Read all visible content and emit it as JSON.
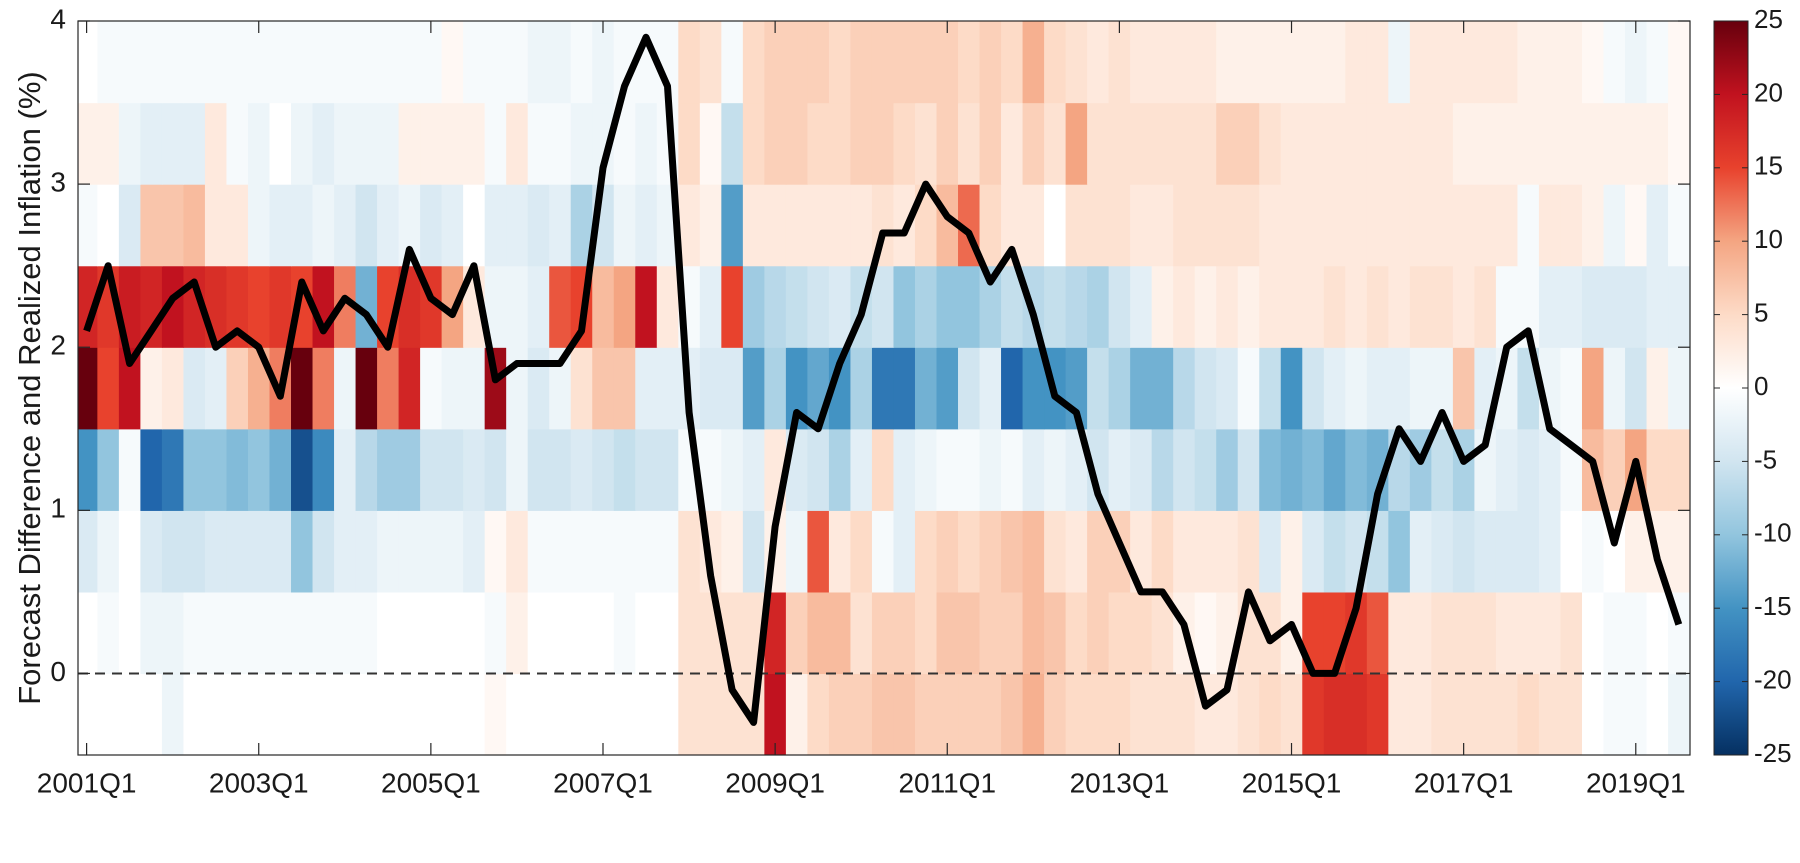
{
  "chart_data": {
    "type": "heatmap",
    "y_label": "Forecast Difference and Realized Inflation (%)",
    "x": [
      2001,
      2001.25,
      2001.5,
      2001.75,
      2002,
      2002.25,
      2002.5,
      2002.75,
      2003,
      2003.25,
      2003.5,
      2003.75,
      2004,
      2004.25,
      2004.5,
      2004.75,
      2005,
      2005.25,
      2005.5,
      2005.75,
      2006,
      2006.25,
      2006.5,
      2006.75,
      2007,
      2007.25,
      2007.5,
      2007.75,
      2008,
      2008.25,
      2008.5,
      2008.75,
      2009,
      2009.25,
      2009.5,
      2009.75,
      2010,
      2010.25,
      2010.5,
      2010.75,
      2011,
      2011.25,
      2011.5,
      2011.75,
      2012,
      2012.25,
      2012.5,
      2012.75,
      2013,
      2013.25,
      2013.5,
      2013.75,
      2014,
      2014.25,
      2014.5,
      2014.75,
      2015,
      2015.25,
      2015.5,
      2015.75,
      2016,
      2016.25,
      2016.5,
      2016.75,
      2017,
      2017.25,
      2017.5,
      2017.75,
      2018,
      2018.25,
      2018.5,
      2018.75,
      2019,
      2019.25,
      2019.5
    ],
    "y_edges": [
      -0.5,
      0,
      0.5,
      1,
      1.5,
      2,
      2.5,
      3,
      3.5,
      4
    ],
    "z": [
      [
        0,
        0,
        0,
        0,
        -2,
        0,
        0,
        0,
        0,
        0,
        0,
        0,
        0,
        0,
        0,
        0,
        0,
        0,
        0,
        1,
        0,
        0,
        0,
        0,
        0,
        0,
        0,
        0,
        4,
        4,
        4,
        4,
        20,
        2,
        5,
        6,
        6,
        7,
        7,
        6,
        6,
        6,
        6,
        7,
        9,
        6,
        5,
        5,
        5,
        4,
        4,
        4,
        3,
        3,
        4,
        5,
        4,
        16,
        17,
        17,
        16,
        3,
        3,
        4,
        4,
        4,
        4,
        5,
        4,
        4,
        0,
        -1,
        -1,
        0,
        -2
      ],
      [
        0,
        -1,
        0,
        -2,
        -2,
        -1,
        -1,
        -1,
        -1,
        -1,
        -1,
        -1,
        -1,
        -1,
        0,
        0,
        0,
        0,
        0,
        -1,
        2,
        0,
        0,
        0,
        0,
        -1,
        0,
        0,
        4,
        4,
        4,
        4,
        18,
        6,
        8,
        8,
        4,
        6,
        6,
        5,
        7,
        7,
        6,
        6,
        8,
        7,
        5,
        6,
        5,
        5,
        4,
        2,
        1,
        2,
        4,
        4,
        2,
        15,
        15,
        16,
        14,
        3,
        3,
        4,
        4,
        4,
        3,
        3,
        3,
        4,
        0,
        -1,
        -1,
        0,
        -1
      ],
      [
        -4,
        -2,
        0,
        -4,
        -5,
        -5,
        -4,
        -4,
        -4,
        -4,
        -10,
        -5,
        -3,
        -3,
        -2,
        -2,
        -2,
        -2,
        -3,
        1,
        3,
        -1,
        -1,
        -1,
        -1,
        -1,
        -1,
        -1,
        4,
        3,
        2,
        -5,
        2,
        -2,
        14,
        3,
        5,
        -1,
        -3,
        5,
        6,
        5,
        6,
        7,
        8,
        4,
        3,
        6,
        6,
        3,
        5,
        3,
        3,
        3,
        4,
        -4,
        2,
        -4,
        -6,
        -5,
        -6,
        -10,
        -3,
        -4,
        -5,
        -4,
        -4,
        -4,
        -3,
        0,
        -1,
        0,
        2,
        2,
        2
      ],
      [
        -15,
        -10,
        -1,
        -20,
        -18,
        -10,
        -10,
        -11,
        -10,
        -12,
        -22,
        -16,
        -3,
        -7,
        -9,
        -9,
        -5,
        -5,
        -4,
        -5,
        -2,
        -5,
        -5,
        -4,
        -5,
        -6,
        -5,
        -5,
        -1,
        -1,
        -2,
        -3,
        3,
        -4,
        -5,
        -8,
        -3,
        5,
        -3,
        -2,
        -1,
        -1,
        -2,
        -1,
        -3,
        -2,
        -3,
        -5,
        -3,
        -4,
        -7,
        -5,
        -6,
        -9,
        -5,
        -11,
        -12,
        -11,
        -13,
        -11,
        -12,
        -7,
        -9,
        -6,
        -8,
        -2,
        -3,
        -4,
        -3,
        -1,
        8,
        6,
        10,
        5,
        5
      ],
      [
        25,
        15,
        20,
        2,
        3,
        -4,
        -3,
        6,
        9,
        12,
        25,
        12,
        -2,
        25,
        12,
        18,
        -1,
        -2,
        -2,
        22,
        -2,
        -4,
        -2,
        4,
        7,
        7,
        -3,
        -3,
        -3,
        -4,
        -4,
        -14,
        -8,
        -15,
        -13,
        -15,
        -8,
        -18,
        -18,
        -12,
        -14,
        -5,
        -3,
        -20,
        -15,
        -15,
        -14,
        -6,
        -8,
        -12,
        -12,
        -7,
        -5,
        -4,
        -1,
        -6,
        -15,
        -5,
        -3,
        -2,
        -3,
        -3,
        -2,
        -2,
        7,
        -3,
        -2,
        -6,
        -2,
        -1,
        10,
        -2,
        -5,
        2,
        -2
      ],
      [
        18,
        16,
        19,
        18,
        20,
        18,
        17,
        16,
        15,
        16,
        15,
        20,
        12,
        -12,
        15,
        17,
        16,
        10,
        3,
        -2,
        -2,
        -3,
        14,
        15,
        8,
        10,
        20,
        3,
        -1,
        -3,
        15,
        -9,
        -7,
        -6,
        -5,
        -4,
        -6,
        -5,
        -10,
        -8,
        -10,
        -10,
        -8,
        -6,
        -7,
        -6,
        -7,
        -8,
        -5,
        -3,
        2,
        3,
        2,
        3,
        2,
        3,
        3,
        3,
        4,
        3,
        4,
        3,
        4,
        4,
        3,
        4,
        -1,
        -1,
        -3,
        -3,
        -4,
        -4,
        -4,
        -3,
        -3
      ],
      [
        -1,
        0,
        -4,
        7,
        7,
        8,
        3,
        3,
        -2,
        -3,
        -3,
        -2,
        -3,
        -5,
        -3,
        -2,
        -4,
        -3,
        0,
        -3,
        -3,
        -4,
        -3,
        -8,
        -5,
        -2,
        -3,
        -2,
        3,
        2,
        -14,
        3,
        3,
        3,
        3,
        3,
        3,
        4,
        3,
        5,
        8,
        13,
        5,
        3,
        3,
        0,
        4,
        4,
        4,
        3,
        3,
        4,
        4,
        4,
        4,
        3,
        3,
        3,
        3,
        3,
        3,
        3,
        3,
        3,
        3,
        3,
        3,
        -1,
        3,
        3,
        2,
        -2,
        1,
        -3,
        -1
      ],
      [
        2,
        2,
        -2,
        -3,
        -3,
        -3,
        3,
        -1,
        -2,
        0,
        -2,
        -3,
        -2,
        -2,
        -2,
        2,
        2,
        2,
        2,
        -1,
        3,
        -1,
        -1,
        -2,
        -2,
        -1,
        -2,
        -1,
        5,
        1,
        -6,
        5,
        6,
        6,
        5,
        5,
        6,
        6,
        5,
        4,
        6,
        4,
        6,
        3,
        6,
        4,
        10,
        4,
        4,
        4,
        4,
        4,
        4,
        6,
        6,
        4,
        3,
        3,
        3,
        3,
        3,
        3,
        3,
        3,
        2,
        2,
        2,
        2,
        2,
        2,
        2,
        2,
        2,
        2,
        1
      ],
      [
        0,
        -1,
        -1,
        -1,
        -1,
        -1,
        -1,
        -1,
        -1,
        -1,
        -1,
        -1,
        -1,
        -1,
        -1,
        -1,
        -1,
        1,
        -1,
        -1,
        -1,
        -2,
        -2,
        -1,
        -2,
        -1,
        -1,
        -1,
        5,
        4,
        -1,
        5,
        6,
        6,
        6,
        5,
        6,
        6,
        6,
        6,
        6,
        5,
        6,
        5,
        9,
        5,
        4,
        3,
        4,
        3,
        3,
        3,
        3,
        2,
        2,
        2,
        2,
        2,
        2,
        3,
        3,
        -2,
        3,
        3,
        3,
        3,
        3,
        2,
        2,
        2,
        1,
        -1,
        -2,
        -1,
        1
      ]
    ],
    "line": {
      "color": "#000000",
      "values": [
        2.1,
        2.5,
        1.9,
        2.1,
        2.3,
        2.4,
        2.0,
        2.1,
        2.0,
        1.7,
        2.4,
        2.1,
        2.3,
        2.2,
        2.0,
        2.6,
        2.3,
        2.2,
        2.5,
        1.8,
        1.9,
        1.9,
        1.9,
        2.1,
        3.1,
        3.6,
        3.9,
        3.6,
        1.6,
        0.6,
        -0.1,
        -0.3,
        0.9,
        1.6,
        1.5,
        1.9,
        2.2,
        2.7,
        2.7,
        3.0,
        2.8,
        2.7,
        2.4,
        2.6,
        2.2,
        1.7,
        1.6,
        1.1,
        0.8,
        0.5,
        0.5,
        0.3,
        -0.2,
        -0.1,
        0.5,
        0.2,
        0.3,
        0.0,
        0.0,
        0.4,
        1.1,
        1.5,
        1.3,
        1.6,
        1.3,
        1.4,
        2.0,
        2.1,
        1.5,
        1.4,
        1.3,
        0.8,
        1.3,
        0.7,
        0.3
      ]
    },
    "reference_line": 0,
    "xlim": [
      2000.9,
      2019.63
    ],
    "xticks": [
      {
        "value": 2001,
        "label": "2001Q1"
      },
      {
        "value": 2003,
        "label": "2003Q1"
      },
      {
        "value": 2005,
        "label": "2005Q1"
      },
      {
        "value": 2007,
        "label": "2007Q1"
      },
      {
        "value": 2009,
        "label": "2009Q1"
      },
      {
        "value": 2011,
        "label": "2011Q1"
      },
      {
        "value": 2013,
        "label": "2013Q1"
      },
      {
        "value": 2015,
        "label": "2015Q1"
      },
      {
        "value": 2017,
        "label": "2017Q1"
      },
      {
        "value": 2019,
        "label": "2019Q1"
      }
    ],
    "ylim": [
      -0.5,
      4
    ],
    "yticks": [
      0,
      1,
      2,
      3,
      4
    ],
    "clim": [
      -25,
      25
    ],
    "colormap": [
      "#053061",
      "#2166ac",
      "#4393c3",
      "#92c5de",
      "#d1e5f0",
      "#ffffff",
      "#fddbc7",
      "#f4a582",
      "#e8422d",
      "#c1121f",
      "#67000d"
    ],
    "cticks": [
      -25,
      -20,
      -15,
      -10,
      -5,
      0,
      5,
      10,
      15,
      20,
      25
    ]
  }
}
